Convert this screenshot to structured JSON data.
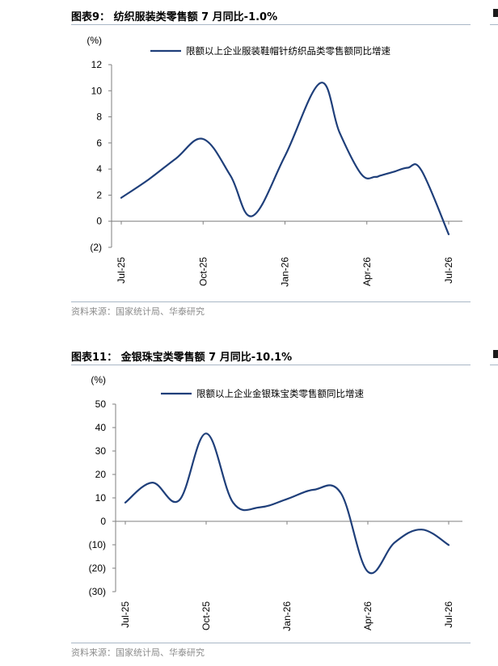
{
  "charts": [
    {
      "title": "图表9： 纺织服装类零售额 7 月同比-1.0%",
      "source": "资料来源：国家统计局、华泰研究",
      "chart_data": {
        "type": "line",
        "yunit": "(%)",
        "ylim": [
          -2,
          12
        ],
        "yticks": [
          -2,
          0,
          2,
          4,
          6,
          8,
          10,
          12
        ],
        "ytick_labels": [
          "(2)",
          "0",
          "2",
          "4",
          "6",
          "8",
          "10",
          "12"
        ],
        "xticks": [
          {
            "x": 0,
            "label": "Jul-25"
          },
          {
            "x": 3,
            "label": "Oct-25"
          },
          {
            "x": 6,
            "label": "Jan-26"
          },
          {
            "x": 9,
            "label": "Apr-26"
          },
          {
            "x": 12,
            "label": "Jul-26"
          }
        ],
        "xlim": [
          0,
          12
        ],
        "legend_position": "top",
        "grid": false,
        "series": [
          {
            "name": "限额以上企业服装鞋帽针纺织品类零售额同比增速",
            "color": "#1f3f7a",
            "x": [
              0,
              1,
              2,
              3,
              4,
              4.8,
              6,
              7.3,
              8,
              8.8,
              9.3,
              9.5,
              10,
              10.5,
              11,
              12
            ],
            "y": [
              1.8,
              3.2,
              4.8,
              6.3,
              3.5,
              0.4,
              5.0,
              10.6,
              6.8,
              3.6,
              3.4,
              3.5,
              3.8,
              4.1,
              3.9,
              -1.0
            ]
          }
        ]
      }
    },
    {
      "title": "图表11： 金银珠宝类零售额 7 月同比-10.1%",
      "source": "资料来源：国家统计局、华泰研究",
      "chart_data": {
        "type": "line",
        "yunit": "(%)",
        "ylim": [
          -30,
          50
        ],
        "yticks": [
          -30,
          -20,
          -10,
          0,
          10,
          20,
          30,
          40,
          50
        ],
        "ytick_labels": [
          "(30)",
          "(20)",
          "(10)",
          "0",
          "10",
          "20",
          "30",
          "40",
          "50"
        ],
        "xticks": [
          {
            "x": 0,
            "label": "Jul-25"
          },
          {
            "x": 3,
            "label": "Oct-25"
          },
          {
            "x": 6,
            "label": "Jan-26"
          },
          {
            "x": 9,
            "label": "Apr-26"
          },
          {
            "x": 12,
            "label": "Jul-26"
          }
        ],
        "xlim": [
          0,
          12
        ],
        "legend_position": "top",
        "grid": false,
        "series": [
          {
            "name": "限额以上企业金银珠宝类零售额同比增速",
            "color": "#1f3f7a",
            "x": [
              0,
              1,
              2,
              3,
              4,
              5,
              6,
              7,
              8,
              9,
              10,
              11,
              12
            ],
            "y": [
              8,
              16.5,
              9,
              37.5,
              8,
              6,
              9.5,
              13.5,
              12,
              -21.5,
              -9,
              -3.5,
              -10.1
            ]
          }
        ]
      }
    }
  ]
}
